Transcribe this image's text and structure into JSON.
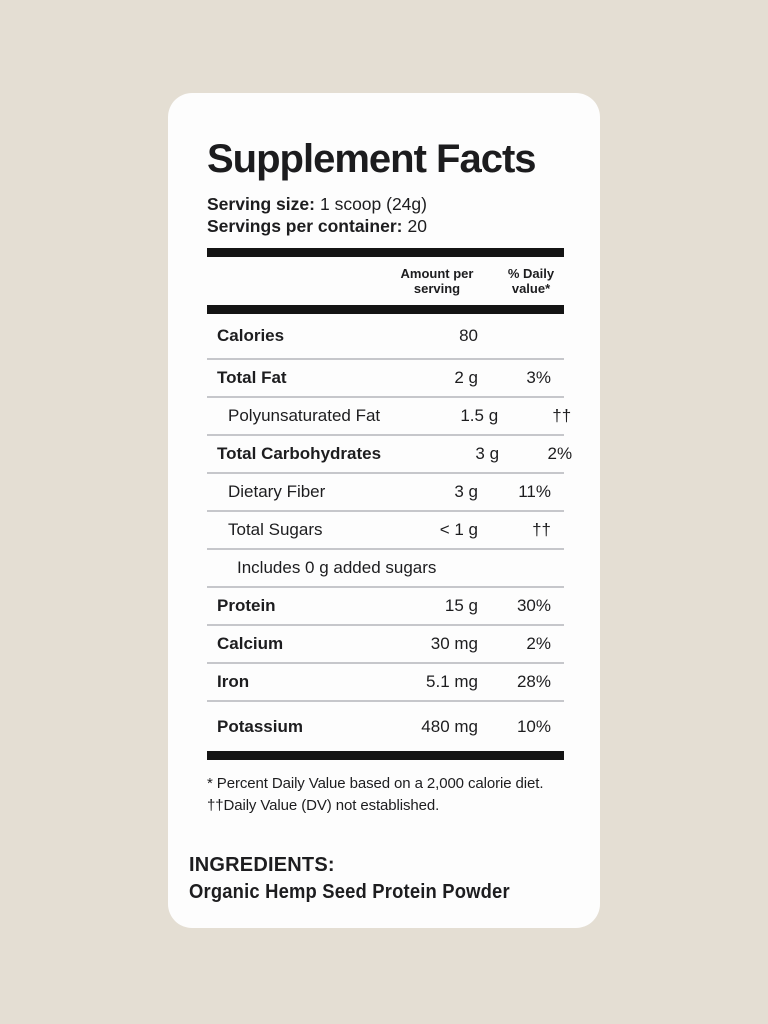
{
  "colors": {
    "background": "#e4ded3",
    "card": "#fdfdfd",
    "text": "#1d1d1f",
    "thick_bar": "#141414",
    "thin_divider": "#c6c7cb"
  },
  "label": {
    "title": "Supplement Facts",
    "serving_size_label": "Serving size:",
    "serving_size_value": "1 scoop (24g)",
    "servings_per_container_label": "Servings per container:",
    "servings_per_container_value": "20",
    "columns": {
      "amount": "Amount per serving",
      "daily_value": "% Daily value*"
    },
    "rows": [
      {
        "name": "Calories",
        "amount": "80",
        "dv": "",
        "style": "bold first"
      },
      {
        "name": "Total Fat",
        "amount": "2 g",
        "dv": "3%",
        "style": "bold"
      },
      {
        "name": "Polyunsaturated Fat",
        "amount": "1.5 g",
        "dv": "††",
        "style": "indent"
      },
      {
        "name": "Total Carbohydrates",
        "amount": "3 g",
        "dv": "2%",
        "style": "bold"
      },
      {
        "name": "Dietary Fiber",
        "amount": "3 g",
        "dv": "11%",
        "style": "indent"
      },
      {
        "name": "Total Sugars",
        "amount": "< 1 g",
        "dv": "††",
        "style": "indent"
      },
      {
        "name": "Includes 0 g added sugars",
        "amount": "",
        "dv": "",
        "style": "indent2"
      },
      {
        "name": "Protein",
        "amount": "15 g",
        "dv": "30%",
        "style": "bold"
      },
      {
        "name": "Calcium",
        "amount": "30 mg",
        "dv": "2%",
        "style": "bold"
      },
      {
        "name": "Iron",
        "amount": "5.1 mg",
        "dv": "28%",
        "style": "bold"
      },
      {
        "name": "Potassium",
        "amount": "480 mg",
        "dv": "10%",
        "style": "bold last"
      }
    ],
    "footnotes": [
      "* Percent Daily Value based on a 2,000 calorie diet.",
      "††Daily Value (DV) not established."
    ],
    "ingredients_label": "INGREDIENTS:",
    "ingredients_value": "Organic Hemp Seed Protein Powder"
  }
}
